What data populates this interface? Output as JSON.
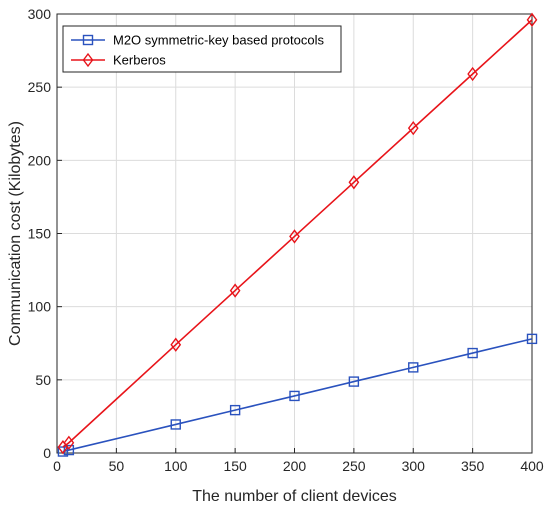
{
  "chart_data": {
    "type": "line",
    "title": "",
    "xlabel": "The number of client devices",
    "ylabel": "Communication cost (Kilobytes)",
    "xlim": [
      0,
      400
    ],
    "ylim": [
      0,
      300
    ],
    "xticks": [
      0,
      50,
      100,
      150,
      200,
      250,
      300,
      350,
      400
    ],
    "yticks": [
      0,
      50,
      100,
      150,
      200,
      250,
      300
    ],
    "grid": true,
    "legend_position": "top-left",
    "series": [
      {
        "name": "M2O symmetric-key based protocols",
        "color": "#2a52be",
        "marker": "square",
        "x": [
          5,
          10,
          100,
          150,
          200,
          250,
          300,
          350,
          400
        ],
        "y": [
          1,
          2,
          19.5,
          29.3,
          39,
          48.8,
          58.5,
          68.3,
          78
        ]
      },
      {
        "name": "Kerberos",
        "color": "#e8141a",
        "marker": "diamond",
        "x": [
          5,
          10,
          100,
          150,
          200,
          250,
          300,
          350,
          400
        ],
        "y": [
          4,
          7,
          74,
          111,
          148,
          185,
          222,
          259,
          296
        ]
      }
    ]
  }
}
